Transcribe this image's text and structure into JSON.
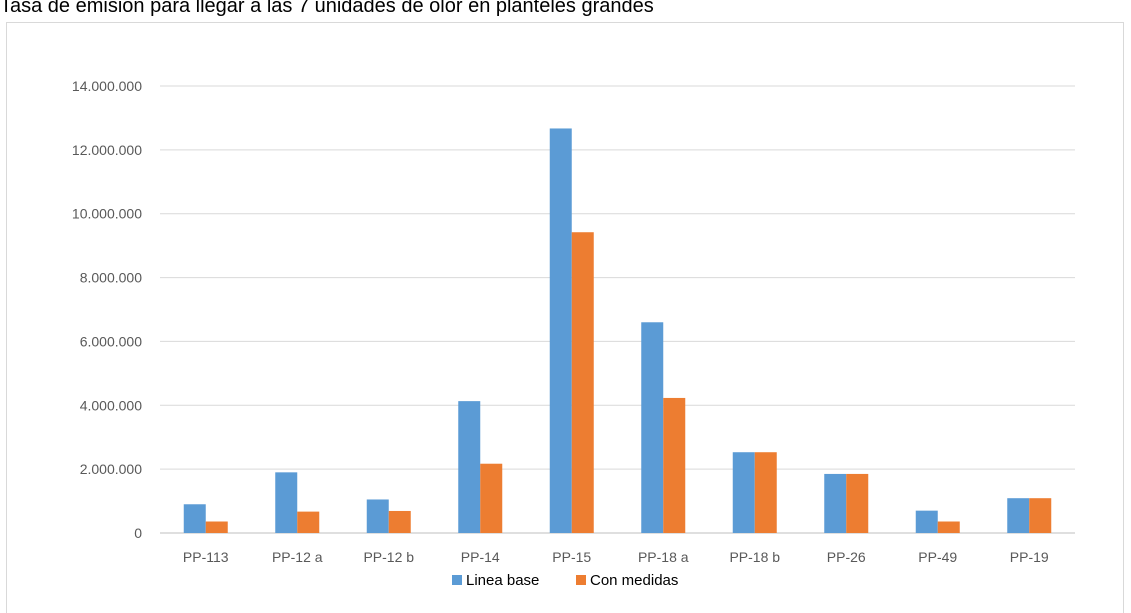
{
  "chart_data": {
    "type": "bar",
    "title": "Tasa de emisión para llegar a las 7 unidades de olor en planteles grandes",
    "xlabel": "",
    "ylabel": "",
    "ylim": [
      0,
      14000000
    ],
    "yticks": [
      "0",
      "2.000.000",
      "4.000.000",
      "6.000.000",
      "8.000.000",
      "10.000.000",
      "12.000.000",
      "14.000.000"
    ],
    "ytick_values": [
      0,
      2000000,
      4000000,
      6000000,
      8000000,
      10000000,
      12000000,
      14000000
    ],
    "grid": true,
    "legend_position": "bottom",
    "categories": [
      "PP-113",
      "PP-12 a",
      "PP-12 b",
      "PP-14",
      "PP-15",
      "PP-18 a",
      "PP-18 b",
      "PP-26",
      "PP-49",
      "PP-19"
    ],
    "series": [
      {
        "name": "Linea base",
        "color": "#5b9bd5",
        "values": [
          900000,
          1900000,
          1050000,
          4130000,
          12670000,
          6600000,
          2530000,
          1850000,
          700000,
          1090000
        ]
      },
      {
        "name": "Con medidas",
        "color": "#ed7d31",
        "values": [
          360000,
          670000,
          690000,
          2170000,
          9420000,
          4230000,
          2530000,
          1850000,
          360000,
          1090000
        ]
      }
    ]
  }
}
